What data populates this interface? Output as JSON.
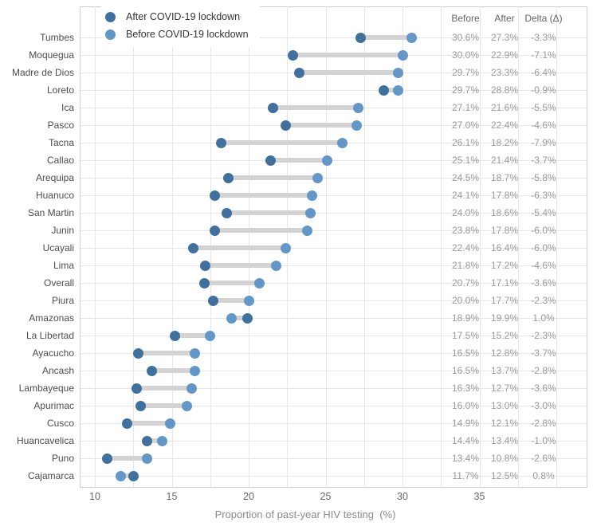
{
  "chart_data": {
    "type": "scatter",
    "variant": "dumbbell",
    "xlabel": "Proportion of past-year HIV testing  (%)",
    "x_ticks": [
      10,
      15,
      20,
      25,
      30,
      35
    ],
    "x_gridline_values": [
      10,
      12.5,
      15,
      17.5,
      20,
      22.5,
      25,
      27.5,
      30,
      32.5,
      35,
      37.5,
      40
    ],
    "xlim_note": "panel spans roughly 9 to 42 percent",
    "grid": "on",
    "legend_position": "top-left inside panel",
    "legend": [
      {
        "label": "After COVID-19 lockdown",
        "color": "#40719E"
      },
      {
        "label": "Before COVID-19 lockdown",
        "color": "#6297C8"
      }
    ],
    "table_headers": [
      "Before",
      "After",
      "Delta (Δ)"
    ],
    "rows": [
      {
        "region": "Tumbes",
        "before": 30.6,
        "after": 27.3,
        "before_label": "30.6%",
        "after_label": "27.3%",
        "delta_label": "-3.3%"
      },
      {
        "region": "Moquegua",
        "before": 30.0,
        "after": 22.9,
        "before_label": "30.0%",
        "after_label": "22.9%",
        "delta_label": "-7.1%"
      },
      {
        "region": "Madre de Dios",
        "before": 29.7,
        "after": 23.3,
        "before_label": "29.7%",
        "after_label": "23.3%",
        "delta_label": "-6.4%"
      },
      {
        "region": "Loreto",
        "before": 29.7,
        "after": 28.8,
        "before_label": "29.7%",
        "after_label": "28.8%",
        "delta_label": "-0.9%"
      },
      {
        "region": "Ica",
        "before": 27.1,
        "after": 21.6,
        "before_label": "27.1%",
        "after_label": "21.6%",
        "delta_label": "-5.5%"
      },
      {
        "region": "Pasco",
        "before": 27.0,
        "after": 22.4,
        "before_label": "27.0%",
        "after_label": "22.4%",
        "delta_label": "-4.6%"
      },
      {
        "region": "Tacna",
        "before": 26.1,
        "after": 18.2,
        "before_label": "26.1%",
        "after_label": "18.2%",
        "delta_label": "-7.9%"
      },
      {
        "region": "Callao",
        "before": 25.1,
        "after": 21.4,
        "before_label": "25.1%",
        "after_label": "21.4%",
        "delta_label": "-3.7%"
      },
      {
        "region": "Arequipa",
        "before": 24.5,
        "after": 18.7,
        "before_label": "24.5%",
        "after_label": "18.7%",
        "delta_label": "-5.8%"
      },
      {
        "region": "Huanuco",
        "before": 24.1,
        "after": 17.8,
        "before_label": "24.1%",
        "after_label": "17.8%",
        "delta_label": "-6.3%"
      },
      {
        "region": "San Martin",
        "before": 24.0,
        "after": 18.6,
        "before_label": "24.0%",
        "after_label": "18.6%",
        "delta_label": "-5.4%"
      },
      {
        "region": "Junin",
        "before": 23.8,
        "after": 17.8,
        "before_label": "23.8%",
        "after_label": "17.8%",
        "delta_label": "-6.0%"
      },
      {
        "region": "Ucayali",
        "before": 22.4,
        "after": 16.4,
        "before_label": "22.4%",
        "after_label": "16.4%",
        "delta_label": "-6.0%"
      },
      {
        "region": "Lima",
        "before": 21.8,
        "after": 17.2,
        "before_label": "21.8%",
        "after_label": "17.2%",
        "delta_label": "-4.6%"
      },
      {
        "region": "Overall",
        "before": 20.7,
        "after": 17.1,
        "before_label": "20.7%",
        "after_label": "17.1%",
        "delta_label": "-3.6%"
      },
      {
        "region": "Piura",
        "before": 20.0,
        "after": 17.7,
        "before_label": "20.0%",
        "after_label": "17.7%",
        "delta_label": "-2.3%"
      },
      {
        "region": "Amazonas",
        "before": 18.9,
        "after": 19.9,
        "before_label": "18.9%",
        "after_label": "19.9%",
        "delta_label": "1.0%"
      },
      {
        "region": "La Libertad",
        "before": 17.5,
        "after": 15.2,
        "before_label": "17.5%",
        "after_label": "15.2%",
        "delta_label": "-2.3%"
      },
      {
        "region": "Ayacucho",
        "before": 16.5,
        "after": 12.8,
        "before_label": "16.5%",
        "after_label": "12.8%",
        "delta_label": "-3.7%"
      },
      {
        "region": "Ancash",
        "before": 16.5,
        "after": 13.7,
        "before_label": "16.5%",
        "after_label": "13.7%",
        "delta_label": "-2.8%"
      },
      {
        "region": "Lambayeque",
        "before": 16.3,
        "after": 12.7,
        "before_label": "16.3%",
        "after_label": "12.7%",
        "delta_label": "-3.6%"
      },
      {
        "region": "Apurimac",
        "before": 16.0,
        "after": 13.0,
        "before_label": "16.0%",
        "after_label": "13.0%",
        "delta_label": "-3.0%"
      },
      {
        "region": "Cusco",
        "before": 14.9,
        "after": 12.1,
        "before_label": "14.9%",
        "after_label": "12.1%",
        "delta_label": "-2.8%"
      },
      {
        "region": "Huancavelica",
        "before": 14.4,
        "after": 13.4,
        "before_label": "14.4%",
        "after_label": "13.4%",
        "delta_label": "-1.0%"
      },
      {
        "region": "Puno",
        "before": 13.4,
        "after": 10.8,
        "before_label": "13.4%",
        "after_label": "10.8%",
        "delta_label": "-2.6%"
      },
      {
        "region": "Cajamarca",
        "before": 11.7,
        "after": 12.5,
        "before_label": "11.7%",
        "after_label": "12.5%",
        "delta_label": "0.8%"
      }
    ]
  },
  "colors": {
    "after_dot": "#40719E",
    "before_dot": "#6297C8",
    "connector": "#D3D3D3",
    "gridline": "#E6E6E6",
    "panel_border": "#CFCFCF",
    "region_label_text": "#4D4D4D",
    "table_value_text": "#9A9A9A",
    "axis_text": "#666666"
  }
}
